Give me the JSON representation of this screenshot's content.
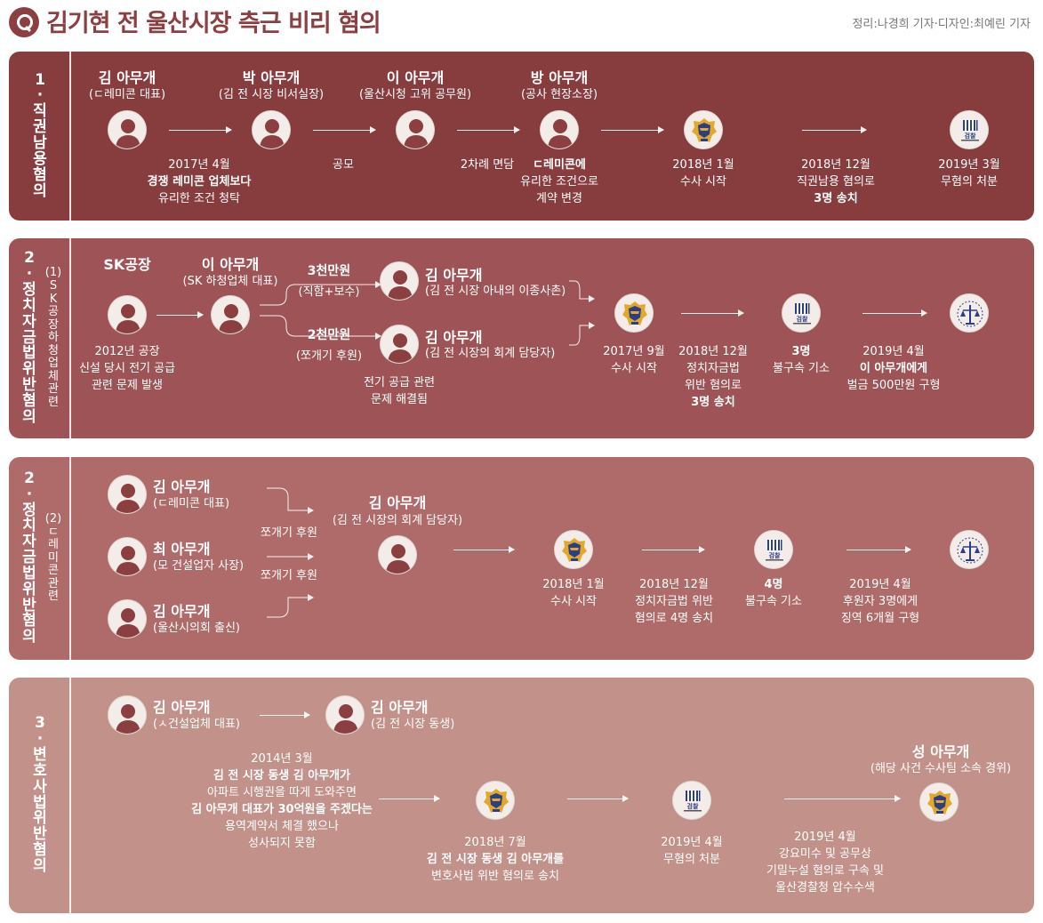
{
  "header": {
    "title": "김기현 전 울산시장 측근 비리 혐의",
    "credit": "정리:나경희 기자·디자인:최예린 기자"
  },
  "colors": {
    "panel1": "#873c3e",
    "panel2": "#9e5457",
    "panel3": "#ae6b6a",
    "panel4": "#c2918a",
    "title": "#8b3f40"
  },
  "panel1": {
    "side": [
      "1",
      "·",
      "직",
      "권",
      "남",
      "용",
      "혐",
      "의"
    ],
    "persons": [
      {
        "name": "김 아무개",
        "role": "(ㄷ레미콘 대표)"
      },
      {
        "name": "박 아무개",
        "role": "(김 전 시장 비서실장)"
      },
      {
        "name": "이 아무개",
        "role": "(울산시청 고위 공무원)"
      },
      {
        "name": "방 아무개",
        "role": "(공사 현장소장)"
      }
    ],
    "d1": [
      "2017년 4월",
      "경쟁 레미콘 업체보다",
      "유리한 조건 청탁"
    ],
    "d2": "공모",
    "d3": "2차례 면담",
    "d4": [
      "ㄷ레미콘에",
      "유리한 조건으로",
      "계약 변경"
    ],
    "d5": [
      "2018년 1월",
      "수사 시작"
    ],
    "d6": [
      "2018년 12월",
      "직권남용 혐의로",
      "3명 송치"
    ],
    "d7": [
      "2019년 3월",
      "무혐의 처분"
    ]
  },
  "panel2": {
    "side_big": [
      "2",
      "·",
      "정",
      "치",
      "자",
      "금",
      "법",
      "위",
      "반",
      "혐",
      "의"
    ],
    "side_small": [
      "(1)",
      "S",
      "K",
      "공",
      "장",
      "하",
      "청",
      "업",
      "체",
      "관",
      "련"
    ],
    "sk": "SK공장",
    "lee": {
      "name": "이 아무개",
      "role": "(SK 하청업체 대표)"
    },
    "amt1": "3천만원",
    "amt1_sub": "(직함+보수)",
    "amt2": "2천만원",
    "amt2_sub": "(쪼개기 후원)",
    "kim1": {
      "name": "김 아무개",
      "role": "(김 전 시장 아내의 이종사촌)"
    },
    "kim2": {
      "name": "김 아무개",
      "role": "(김 전 시장의 회계 담당자)"
    },
    "d_sk": [
      "2012년 공장",
      "신설 당시 전기 공급",
      "관련 문제 발생"
    ],
    "d_solved": [
      "전기 공급 관련",
      "문제 해결됨"
    ],
    "d_police": [
      "2017년 9월",
      "수사 시작"
    ],
    "d_send": [
      "2018년 12월",
      "정치자금법",
      "위반 혐의로",
      "3명 송치"
    ],
    "d_pros": [
      "3명",
      "불구속 기소"
    ],
    "d_court": [
      "2019년 4월",
      "이 아무개에게",
      "벌금 500만원 구형"
    ]
  },
  "panel3": {
    "side_big": [
      "2",
      "·",
      "정",
      "치",
      "자",
      "금",
      "법",
      "위",
      "반",
      "혐",
      "의"
    ],
    "side_small": [
      "(2)",
      "ㄷ",
      "레",
      "미",
      "콘",
      "관",
      "련"
    ],
    "donors": [
      {
        "name": "김 아무개",
        "role": "(ㄷ레미콘 대표)"
      },
      {
        "name": "최 아무개",
        "role": "(모 건설업자 사장)"
      },
      {
        "name": "김 아무개",
        "role": "(울산시의회 출신)"
      }
    ],
    "split1": "쪼개기 후원",
    "split2": "쪼개기 후원",
    "kim": {
      "name": "김 아무개",
      "role": "(김 전 시장의 회계 담당자)"
    },
    "d_police": [
      "2018년 1월",
      "수사 시작"
    ],
    "d_send": [
      "2018년 12월",
      "정치자금법 위반",
      "혐의로 4명 송치"
    ],
    "d_pros": [
      "4명",
      "불구속 기소"
    ],
    "d_court": [
      "2019년 4월",
      "후원자 3명에게",
      "징역 6개월 구형"
    ]
  },
  "panel4": {
    "side": [
      "3",
      "·",
      "변",
      "호",
      "사",
      "법",
      "위",
      "반",
      "혐",
      "의"
    ],
    "kim1": {
      "name": "김 아무개",
      "role": "(ㅅ건설업체 대표)"
    },
    "kim2": {
      "name": "김 아무개",
      "role": "(김 전 시장 동생)"
    },
    "d_story": [
      "2014년 3월",
      "김 전 시장 동생 김 아무개가",
      "아파트 시행권을 따게 도와주면",
      "김 아무개 대표가 30억원을 주겠다는",
      "용역계약서 체결 했으나",
      "성사되지 못함"
    ],
    "d_police": [
      "2018년 7월",
      "김 전 시장 동생 김 아무개를",
      "변호사법 위반 혐의로 송치"
    ],
    "d_pros": [
      "2019년 4월",
      "무혐의 처분"
    ],
    "d_arrest": [
      "2019년 4월",
      "강요미수 및 공무상",
      "기밀누설 혐의로 구속 및",
      "울산경찰청 압수수색"
    ],
    "sung": {
      "name": "성 아무개",
      "role": "(해당 사건 수사팀 소속 경위)"
    }
  },
  "icons": {
    "person": "person-avatar-icon",
    "police": "police-emblem-icon",
    "prosecution": "prosecution-emblem-icon",
    "court": "court-emblem-icon",
    "prosecution_label": "검찰"
  }
}
